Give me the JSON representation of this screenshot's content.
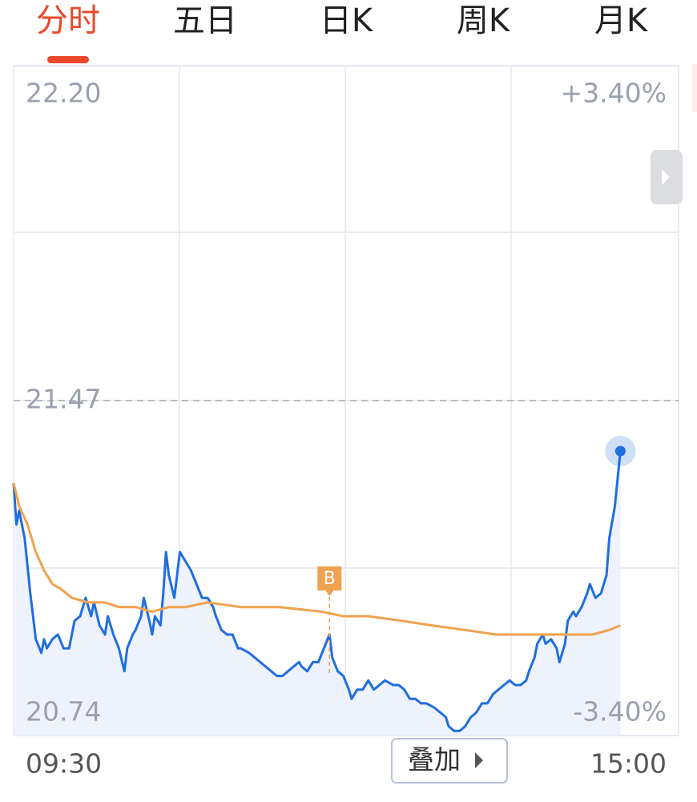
{
  "tabs": [
    "分时",
    "五日",
    "日K",
    "周K",
    "月K"
  ],
  "active_tab": 0,
  "overlay_button": "叠加",
  "chart_data": {
    "type": "line",
    "xlim": [
      0,
      240
    ],
    "xticks": [
      {
        "value": 0,
        "label": "09:30"
      },
      {
        "value": 240,
        "label": "15:00"
      }
    ],
    "ylim": [
      20.74,
      22.2
    ],
    "yticks": [
      {
        "value": 22.2,
        "label": "22.20"
      },
      21.47,
      20.74
    ],
    "y2lim": [
      -3.4,
      3.4
    ],
    "y2ticks": [
      {
        "value": 3.4,
        "label": "+3.40%"
      },
      {
        "value": -3.4,
        "label": "-3.40%"
      }
    ],
    "reference_line": 21.47,
    "grid": true,
    "markers": [
      {
        "x": 114,
        "text": "B"
      }
    ],
    "series": [
      {
        "color": "#1f6ee0",
        "fill": "#eef2fc",
        "x": [
          0,
          1,
          2,
          4,
          6,
          8,
          10,
          11,
          12,
          14,
          16,
          18,
          20,
          22,
          24,
          26,
          28,
          29,
          31,
          33,
          34,
          36,
          38,
          40,
          41,
          43,
          44,
          46,
          47,
          49,
          50,
          51,
          53,
          54,
          55,
          56,
          58,
          60,
          62,
          64,
          66,
          68,
          70,
          72,
          73,
          75,
          77,
          79,
          81,
          82,
          85,
          87,
          89,
          91,
          93,
          95,
          97,
          99,
          101,
          103,
          104,
          106,
          108,
          110,
          112,
          114,
          115,
          117,
          119,
          121,
          122,
          124,
          126,
          128,
          130,
          132,
          134,
          137,
          139,
          141,
          143,
          145,
          147,
          149,
          152,
          154,
          156,
          157,
          159,
          161,
          163,
          165,
          167,
          169,
          171,
          173,
          175,
          177,
          179,
          181,
          183,
          185,
          186,
          188,
          189,
          191,
          192,
          194,
          196,
          197,
          199,
          200,
          202,
          203,
          205,
          207,
          208,
          210,
          212,
          214,
          215,
          217,
          218,
          219
        ],
        "values": [
          21.29,
          21.2,
          21.23,
          21.17,
          21.05,
          20.95,
          20.92,
          20.95,
          20.93,
          20.95,
          20.96,
          20.93,
          20.93,
          20.99,
          21.0,
          21.04,
          21.0,
          21.03,
          20.98,
          20.96,
          21.0,
          20.96,
          20.93,
          20.88,
          20.93,
          20.96,
          20.97,
          21.0,
          21.04,
          20.99,
          20.96,
          21.0,
          20.98,
          21.05,
          21.14,
          21.09,
          21.04,
          21.14,
          21.12,
          21.1,
          21.07,
          21.04,
          21.04,
          21.02,
          21.0,
          20.97,
          20.96,
          20.96,
          20.93,
          20.93,
          20.92,
          20.91,
          20.9,
          20.89,
          20.88,
          20.87,
          20.87,
          20.88,
          20.89,
          20.9,
          20.89,
          20.88,
          20.9,
          20.9,
          20.93,
          20.96,
          20.91,
          20.88,
          20.87,
          20.84,
          20.82,
          20.84,
          20.84,
          20.86,
          20.84,
          20.85,
          20.86,
          20.85,
          20.85,
          20.84,
          20.82,
          20.82,
          20.81,
          20.81,
          20.8,
          20.79,
          20.78,
          20.76,
          20.75,
          20.75,
          20.76,
          20.78,
          20.79,
          20.81,
          20.81,
          20.83,
          20.84,
          20.85,
          20.86,
          20.85,
          20.85,
          20.86,
          20.88,
          20.91,
          20.94,
          20.96,
          20.94,
          20.95,
          20.93,
          20.9,
          20.94,
          20.99,
          21.01,
          21.0,
          21.02,
          21.05,
          21.07,
          21.04,
          21.05,
          21.09,
          21.17,
          21.24,
          21.3,
          21.36
        ]
      },
      {
        "color": "#f0a24e",
        "x": [
          0,
          2,
          5,
          8,
          11,
          14,
          17,
          21,
          27,
          33,
          38,
          44,
          50,
          56,
          62,
          70,
          82,
          96,
          111,
          119,
          128,
          140,
          151,
          163,
          174,
          186,
          197,
          209,
          215,
          219
        ],
        "values": [
          21.29,
          21.24,
          21.2,
          21.14,
          21.1,
          21.07,
          21.06,
          21.04,
          21.03,
          21.03,
          21.02,
          21.02,
          21.01,
          21.02,
          21.02,
          21.03,
          21.02,
          21.02,
          21.01,
          21.0,
          21.0,
          20.99,
          20.98,
          20.97,
          20.96,
          20.96,
          20.96,
          20.96,
          20.97,
          20.98
        ]
      }
    ]
  }
}
